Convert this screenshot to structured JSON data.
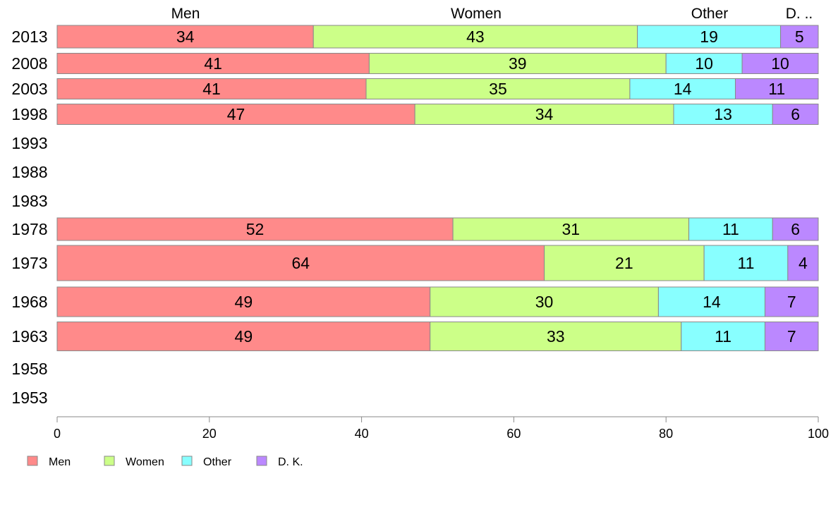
{
  "chart_data": {
    "type": "bar",
    "orientation": "horizontal",
    "stacked": true,
    "categories": [
      "2013",
      "2008",
      "2003",
      "1998",
      "1993",
      "1988",
      "1983",
      "1978",
      "1973",
      "1968",
      "1963",
      "1958",
      "1953"
    ],
    "series": [
      {
        "name": "Men",
        "color": "#FF8A8A",
        "values": [
          34,
          41,
          41,
          47,
          null,
          null,
          null,
          52,
          64,
          49,
          49,
          null,
          null
        ]
      },
      {
        "name": "Women",
        "color": "#CCFF88",
        "values": [
          43,
          39,
          35,
          34,
          null,
          null,
          null,
          31,
          21,
          30,
          33,
          null,
          null
        ]
      },
      {
        "name": "Other",
        "color": "#88FFFF",
        "values": [
          19,
          10,
          14,
          13,
          null,
          null,
          null,
          11,
          11,
          14,
          11,
          null,
          null
        ]
      },
      {
        "name": "D. K.",
        "color": "#BB88FF",
        "values": [
          5,
          10,
          11,
          6,
          null,
          null,
          null,
          6,
          4,
          7,
          7,
          null,
          null
        ]
      }
    ],
    "top_labels": [
      "Men",
      "Women",
      "Other",
      "D. .."
    ],
    "xlim": [
      0,
      100
    ],
    "xticks": [
      0,
      20,
      40,
      60,
      80,
      100
    ],
    "grid": false,
    "legend_position": "bottom-left"
  }
}
